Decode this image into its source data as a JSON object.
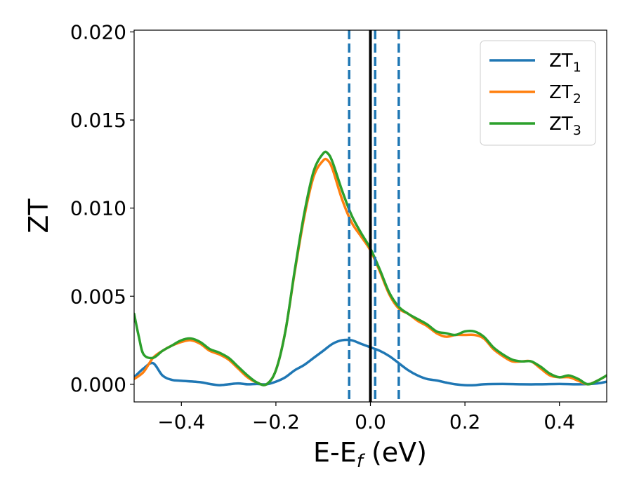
{
  "chart_data": {
    "type": "line",
    "xlabel_main": "E-E",
    "xlabel_sub": "f",
    "xlabel_unit": " (eV)",
    "ylabel": "ZT",
    "xlim": [
      -0.5,
      0.5
    ],
    "ylim": [
      -0.001,
      0.0201
    ],
    "x_ticks": [
      -0.4,
      -0.2,
      0.0,
      0.2,
      0.4
    ],
    "x_tick_labels": [
      "−0.4",
      "−0.2",
      "0.0",
      "0.2",
      "0.4"
    ],
    "y_ticks": [
      0.0,
      0.005,
      0.01,
      0.015,
      0.02
    ],
    "y_tick_labels": [
      "0.000",
      "0.005",
      "0.010",
      "0.015",
      "0.020"
    ],
    "grid": false,
    "legend_position": "top-right",
    "series": [
      {
        "name_main": "ZT",
        "name_sub": "1",
        "color": "#1f77b4",
        "points": [
          [
            -0.5,
            0.0004
          ],
          [
            -0.48,
            0.0009
          ],
          [
            -0.46,
            0.0012
          ],
          [
            -0.44,
            0.0005
          ],
          [
            -0.42,
            0.00025
          ],
          [
            -0.4,
            0.0002
          ],
          [
            -0.36,
            0.00012
          ],
          [
            -0.34,
            2e-05
          ],
          [
            -0.32,
            -5e-05
          ],
          [
            -0.3,
            0.0
          ],
          [
            -0.28,
            5e-05
          ],
          [
            -0.26,
            0.0
          ],
          [
            -0.24,
            2e-05
          ],
          [
            -0.22,
            0.0
          ],
          [
            -0.2,
            0.00015
          ],
          [
            -0.18,
            0.0004
          ],
          [
            -0.16,
            0.0008
          ],
          [
            -0.14,
            0.0011
          ],
          [
            -0.12,
            0.0015
          ],
          [
            -0.1,
            0.0019
          ],
          [
            -0.08,
            0.0023
          ],
          [
            -0.06,
            0.0025
          ],
          [
            -0.04,
            0.0025
          ],
          [
            -0.02,
            0.0023
          ],
          [
            0.0,
            0.0021
          ],
          [
            0.02,
            0.0019
          ],
          [
            0.04,
            0.0016
          ],
          [
            0.06,
            0.0012
          ],
          [
            0.08,
            0.0008
          ],
          [
            0.1,
            0.0005
          ],
          [
            0.12,
            0.0003
          ],
          [
            0.14,
            0.00022
          ],
          [
            0.16,
            0.0001
          ],
          [
            0.18,
            0.0
          ],
          [
            0.2,
            -5e-05
          ],
          [
            0.22,
            -5e-05
          ],
          [
            0.24,
            0.0
          ],
          [
            0.28,
            2e-05
          ],
          [
            0.32,
            0.0
          ],
          [
            0.36,
            0.0
          ],
          [
            0.4,
            2e-05
          ],
          [
            0.44,
            0.0
          ],
          [
            0.48,
            5e-05
          ],
          [
            0.5,
            0.00015
          ]
        ]
      },
      {
        "name_main": "ZT",
        "name_sub": "2",
        "color": "#ff7f0e",
        "points": [
          [
            -0.5,
            0.0003
          ],
          [
            -0.48,
            0.0007
          ],
          [
            -0.46,
            0.0015
          ],
          [
            -0.44,
            0.0019
          ],
          [
            -0.42,
            0.0022
          ],
          [
            -0.4,
            0.0024
          ],
          [
            -0.38,
            0.0025
          ],
          [
            -0.36,
            0.0023
          ],
          [
            -0.34,
            0.0019
          ],
          [
            -0.32,
            0.0017
          ],
          [
            -0.3,
            0.0014
          ],
          [
            -0.28,
            0.0009
          ],
          [
            -0.26,
            0.0004
          ],
          [
            -0.24,
            0.0001
          ],
          [
            -0.22,
            0.0
          ],
          [
            -0.2,
            0.0008
          ],
          [
            -0.18,
            0.003
          ],
          [
            -0.16,
            0.0064
          ],
          [
            -0.14,
            0.0095
          ],
          [
            -0.12,
            0.0118
          ],
          [
            -0.1,
            0.0127
          ],
          [
            -0.09,
            0.0127
          ],
          [
            -0.08,
            0.0122
          ],
          [
            -0.06,
            0.0105
          ],
          [
            -0.04,
            0.0092
          ],
          [
            -0.02,
            0.0084
          ],
          [
            0.0,
            0.0076
          ],
          [
            0.02,
            0.0064
          ],
          [
            0.04,
            0.0051
          ],
          [
            0.06,
            0.0043
          ],
          [
            0.08,
            0.004
          ],
          [
            0.1,
            0.0036
          ],
          [
            0.12,
            0.0033
          ],
          [
            0.14,
            0.0029
          ],
          [
            0.16,
            0.0027
          ],
          [
            0.18,
            0.0028
          ],
          [
            0.2,
            0.0028
          ],
          [
            0.22,
            0.0028
          ],
          [
            0.24,
            0.0026
          ],
          [
            0.26,
            0.002
          ],
          [
            0.28,
            0.0016
          ],
          [
            0.3,
            0.0013
          ],
          [
            0.32,
            0.0013
          ],
          [
            0.34,
            0.0013
          ],
          [
            0.36,
            0.0009
          ],
          [
            0.38,
            0.0005
          ],
          [
            0.4,
            0.0004
          ],
          [
            0.42,
            0.0004
          ],
          [
            0.44,
            0.0002
          ],
          [
            0.46,
            0.0
          ],
          [
            0.48,
            0.0002
          ],
          [
            0.5,
            0.0005
          ]
        ]
      },
      {
        "name_main": "ZT",
        "name_sub": "3",
        "color": "#2ca02c",
        "points": [
          [
            -0.5,
            0.004
          ],
          [
            -0.49,
            0.0027
          ],
          [
            -0.48,
            0.0017
          ],
          [
            -0.46,
            0.0015
          ],
          [
            -0.44,
            0.0019
          ],
          [
            -0.42,
            0.0022
          ],
          [
            -0.4,
            0.0025
          ],
          [
            -0.38,
            0.0026
          ],
          [
            -0.36,
            0.0024
          ],
          [
            -0.34,
            0.002
          ],
          [
            -0.32,
            0.0018
          ],
          [
            -0.3,
            0.0015
          ],
          [
            -0.28,
            0.001
          ],
          [
            -0.26,
            0.0005
          ],
          [
            -0.24,
            0.0001
          ],
          [
            -0.22,
            0.0
          ],
          [
            -0.2,
            0.0008
          ],
          [
            -0.18,
            0.003
          ],
          [
            -0.16,
            0.0065
          ],
          [
            -0.14,
            0.0097
          ],
          [
            -0.12,
            0.0121
          ],
          [
            -0.1,
            0.0131
          ],
          [
            -0.09,
            0.0131
          ],
          [
            -0.08,
            0.0126
          ],
          [
            -0.06,
            0.011
          ],
          [
            -0.04,
            0.0096
          ],
          [
            -0.02,
            0.0086
          ],
          [
            0.0,
            0.0077
          ],
          [
            0.02,
            0.0065
          ],
          [
            0.04,
            0.0052
          ],
          [
            0.06,
            0.0044
          ],
          [
            0.08,
            0.004
          ],
          [
            0.1,
            0.0037
          ],
          [
            0.12,
            0.0034
          ],
          [
            0.14,
            0.003
          ],
          [
            0.16,
            0.0029
          ],
          [
            0.18,
            0.0028
          ],
          [
            0.2,
            0.003
          ],
          [
            0.22,
            0.003
          ],
          [
            0.24,
            0.0027
          ],
          [
            0.26,
            0.0021
          ],
          [
            0.28,
            0.0017
          ],
          [
            0.3,
            0.0014
          ],
          [
            0.32,
            0.0013
          ],
          [
            0.34,
            0.0013
          ],
          [
            0.36,
            0.001
          ],
          [
            0.38,
            0.0006
          ],
          [
            0.4,
            0.0004
          ],
          [
            0.42,
            0.0005
          ],
          [
            0.44,
            0.0003
          ],
          [
            0.46,
            0.0
          ],
          [
            0.48,
            0.0002
          ],
          [
            0.5,
            0.0005
          ]
        ]
      }
    ],
    "vlines": [
      {
        "x": -0.045,
        "style": "dashed",
        "color": "#1f77b4"
      },
      {
        "x": 0.0,
        "style": "solid",
        "color": "#000000"
      },
      {
        "x": 0.01,
        "style": "dashed",
        "color": "#1f77b4"
      },
      {
        "x": 0.06,
        "style": "dashed",
        "color": "#1f77b4"
      }
    ]
  }
}
